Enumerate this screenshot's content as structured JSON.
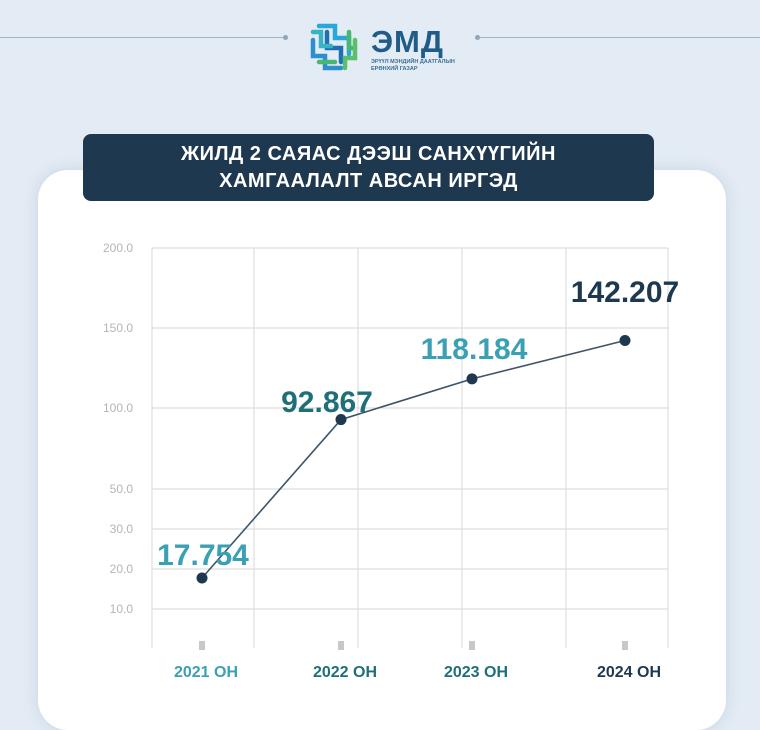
{
  "header": {
    "logo_title": "ЭМД",
    "logo_subtitle_line1": "ЭРҮҮЛ МЭНДИЙН ДААТГАЛЫН",
    "logo_subtitle_line2": "ЕРӨНХИЙ ГАЗАР"
  },
  "title": {
    "line1": "ЖИЛД 2 САЯАС ДЭЭШ САНХҮҮГИЙН",
    "line2": "ХАМГААЛАЛТ АВСАН ИРГЭД"
  },
  "colors": {
    "teal": "#3aa0b3",
    "dark_teal": "#1f6f78",
    "navy": "#1e3850",
    "grid": "#dedede",
    "axis_label": "#b5b5b5",
    "line": "#3d5468"
  },
  "chart_data": {
    "type": "line",
    "title": "ЖИЛД 2 САЯАС ДЭЭШ САНХҮҮГИЙН ХАМГААЛАЛТ АВСАН ИРГЭД",
    "xlabel": "",
    "ylabel": "",
    "categories": [
      "2021 ОН",
      "2022 ОН",
      "2023 ОН",
      "2024 ОН"
    ],
    "values": [
      17.754,
      92.867,
      118.184,
      142.207
    ],
    "value_labels": [
      "17.754",
      "92.867",
      "118.184",
      "142.207"
    ],
    "y_ticks": [
      "200.0",
      "150.0",
      "100.0",
      "50.0",
      "30.0",
      "20.0",
      "10.0"
    ],
    "y_tick_values": [
      200,
      150,
      100,
      50,
      30,
      20,
      10
    ],
    "label_colors": [
      "#3aa0b3",
      "#1f6f78",
      "#3aa0b3",
      "#1e3850"
    ],
    "x_label_colors": [
      "#3aa0b3",
      "#1f6f78",
      "#1f6f78",
      "#1e3850"
    ],
    "grid": true,
    "legend": "none"
  }
}
